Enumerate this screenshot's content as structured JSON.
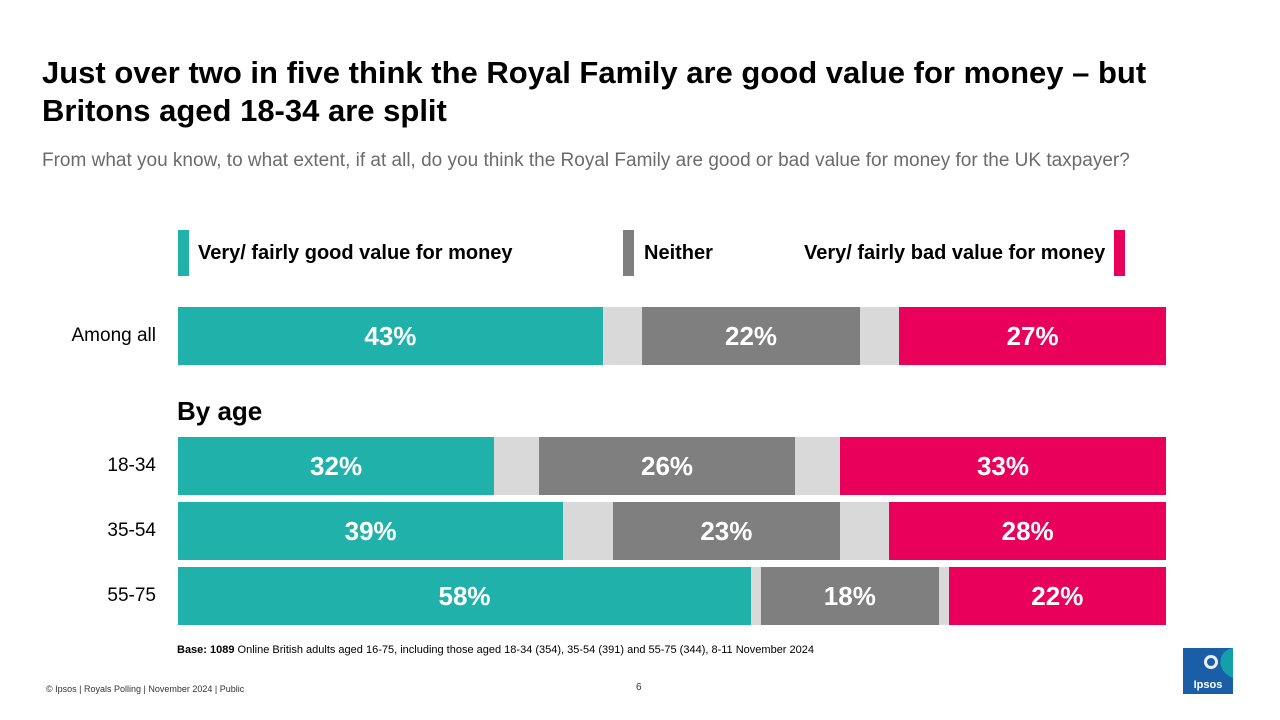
{
  "title": "Just over two in five think the Royal Family are good value for money – but Britons aged 18-34 are split",
  "subtitle": "From what you know, to what extent, if at all, do you think the Royal Family are  good or bad value for money for the UK taxpayer?",
  "colors": {
    "good": "#20b2aa",
    "neither": "#7f7f7f",
    "bad": "#e8005a",
    "gap": "#d9d9d9"
  },
  "chart_data": {
    "type": "bar",
    "orientation": "horizontal",
    "stacked": true,
    "xlim": [
      0,
      100
    ],
    "legend": [
      "Very/ fairly good value for money",
      "Neither",
      "Very/ fairly bad value for money"
    ],
    "section_label": "By age",
    "categories": [
      "Among all",
      "18-34",
      "35-54",
      "55-75"
    ],
    "series": [
      {
        "name": "Very/ fairly good value for money",
        "values": [
          43,
          32,
          39,
          58
        ],
        "labels": [
          "43%",
          "32%",
          "39%",
          "58%"
        ]
      },
      {
        "name": "Neither",
        "values": [
          22,
          26,
          23,
          18
        ],
        "labels": [
          "22%",
          "26%",
          "23%",
          "18%"
        ]
      },
      {
        "name": "Very/ fairly bad value for money",
        "values": [
          27,
          33,
          28,
          22
        ],
        "labels": [
          "27%",
          "33%",
          "28%",
          "22%"
        ]
      }
    ]
  },
  "footnote": {
    "bold": "Base: 1089",
    "text": " Online British adults aged 16-75, including those aged 18-34 (354), 35-54 (391) and 55-75 (344), 8-11 November 2024"
  },
  "footer": "© Ipsos | Royals Polling | November 2024 | Public",
  "page_number": "6",
  "logo_text": "Ipsos"
}
